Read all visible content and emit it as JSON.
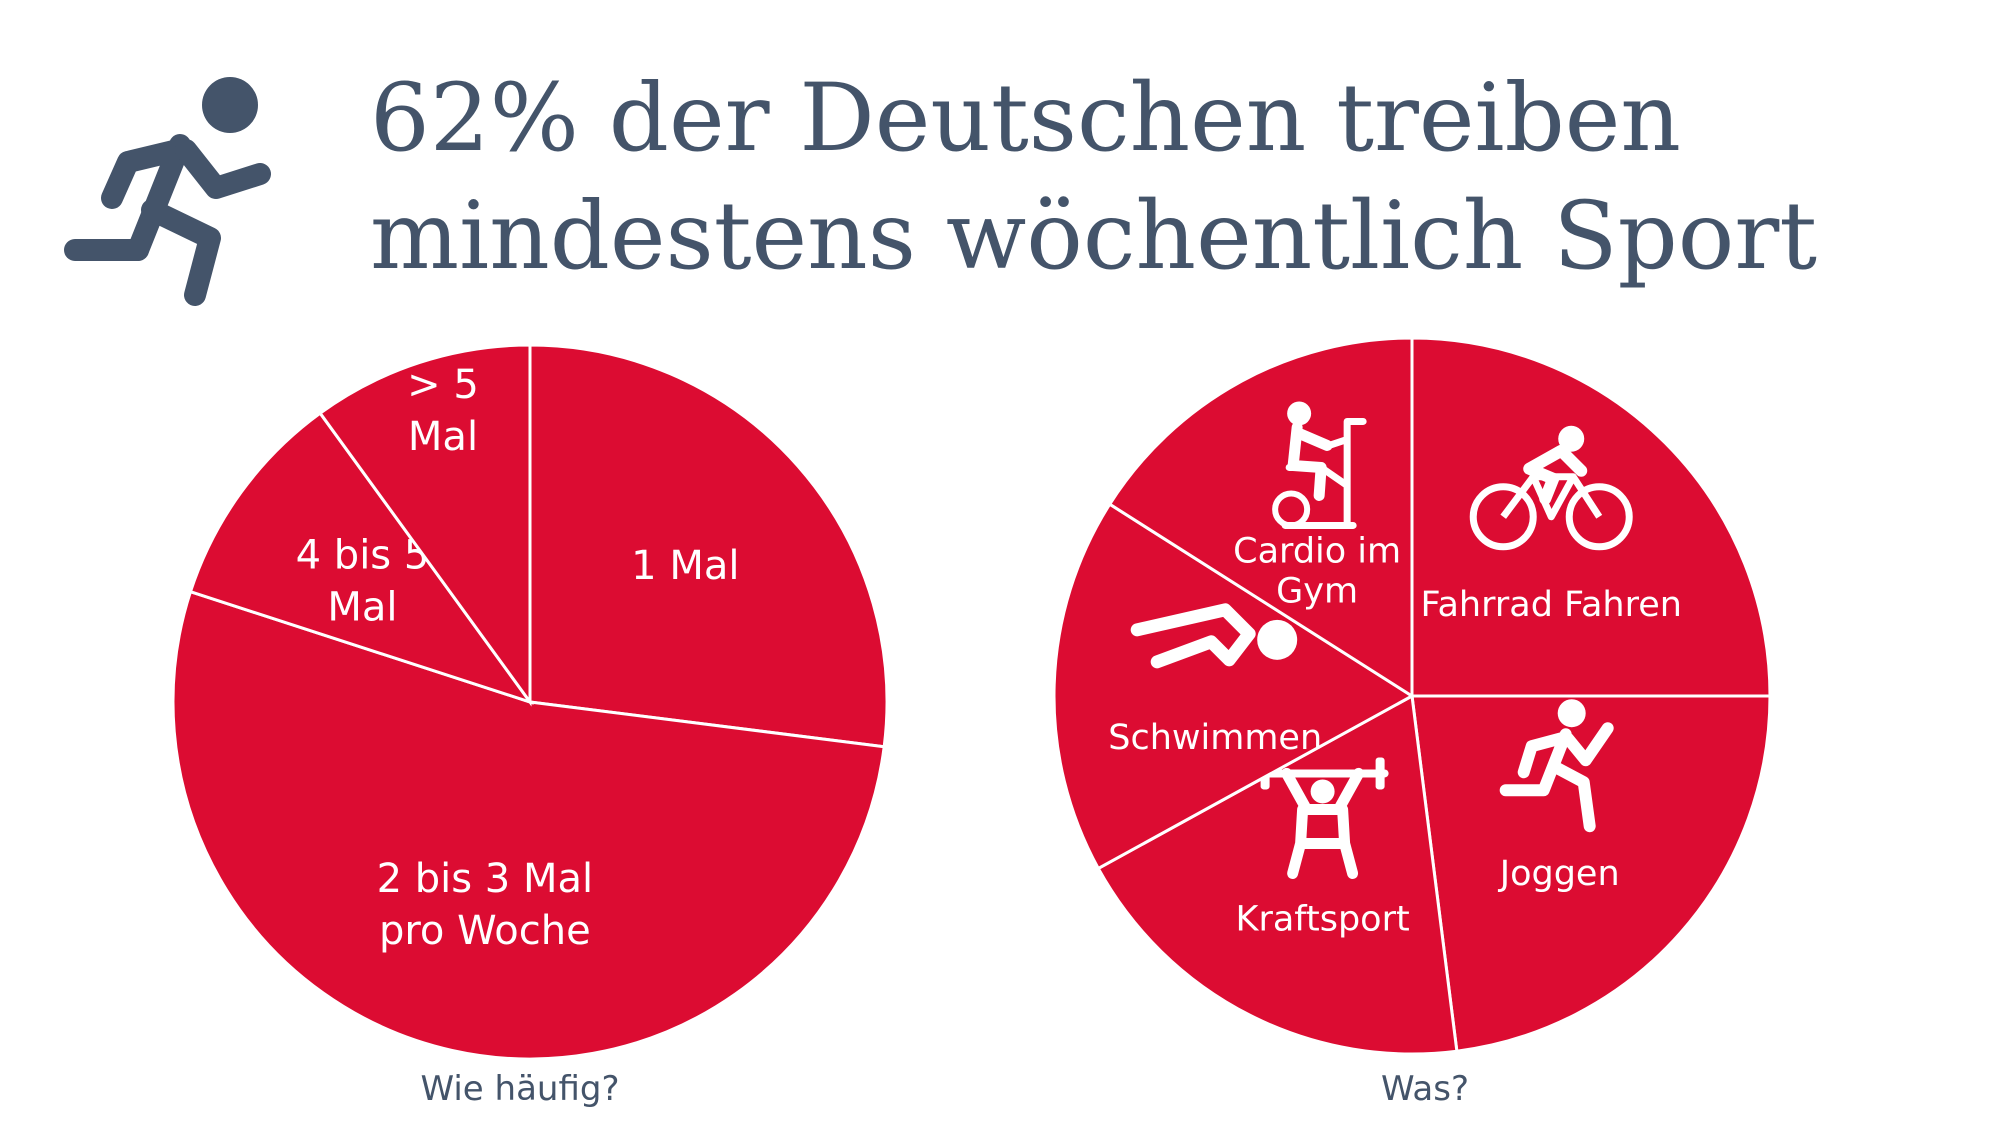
{
  "headline": {
    "line1": "62% der Deutschen treiben",
    "line2": "mindestens wöchentlich Sport",
    "icon": "running-person-icon"
  },
  "colors": {
    "slice": "#dc0c32",
    "divider": "#ffffff",
    "text": "#44546a"
  },
  "chart_data": [
    {
      "type": "pie",
      "title": "Wie häufig?",
      "slices": [
        {
          "label_lines": [
            "1 Mal"
          ],
          "value": 27
        },
        {
          "label_lines": [
            "2 bis 3 Mal",
            "pro Woche"
          ],
          "value": 53
        },
        {
          "label_lines": [
            "4 bis 5",
            "Mal"
          ],
          "value": 10
        },
        {
          "label_lines": [
            "> 5",
            "Mal"
          ],
          "value": 10
        }
      ]
    },
    {
      "type": "pie",
      "title": "Was?",
      "slices": [
        {
          "label_lines": [
            "Fahrrad Fahren"
          ],
          "value": 25,
          "icon": "bicycle-icon"
        },
        {
          "label_lines": [
            "Joggen"
          ],
          "value": 23,
          "icon": "jogging-icon"
        },
        {
          "label_lines": [
            "Kraftsport"
          ],
          "value": 19,
          "icon": "weightlifting-icon"
        },
        {
          "label_lines": [
            "Schwimmen"
          ],
          "value": 17,
          "icon": "swimming-icon"
        },
        {
          "label_lines": [
            "Cardio im",
            "Gym"
          ],
          "value": 16,
          "icon": "exercise-bike-icon"
        }
      ]
    }
  ]
}
